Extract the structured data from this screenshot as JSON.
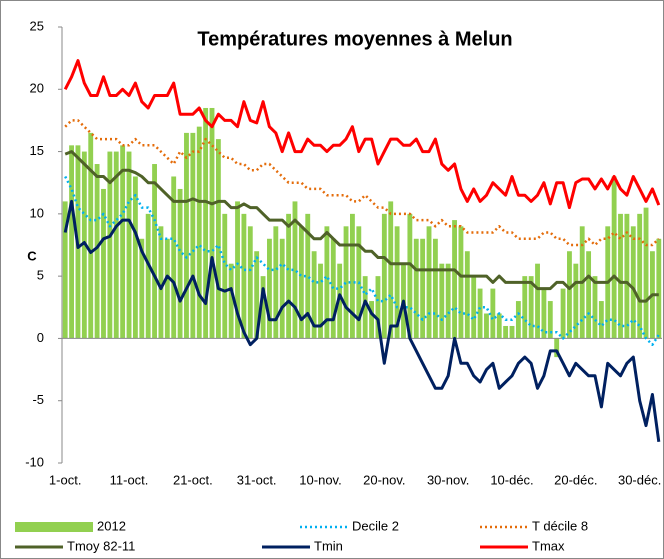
{
  "chart_data": {
    "type": "bar",
    "title": "Températures moyennes à Melun",
    "y_label": "C",
    "categories": [
      "1-oct.",
      null,
      null,
      null,
      null,
      null,
      null,
      null,
      null,
      null,
      "11-oct.",
      null,
      null,
      null,
      null,
      null,
      null,
      null,
      null,
      null,
      "21-oct.",
      null,
      null,
      null,
      null,
      null,
      null,
      null,
      null,
      null,
      "31-oct.",
      null,
      null,
      null,
      null,
      null,
      null,
      null,
      null,
      null,
      "10-nov.",
      null,
      null,
      null,
      null,
      null,
      null,
      null,
      null,
      null,
      "20-nov.",
      null,
      null,
      null,
      null,
      null,
      null,
      null,
      null,
      null,
      "30-nov.",
      null,
      null,
      null,
      null,
      null,
      null,
      null,
      null,
      null,
      "10-déc.",
      null,
      null,
      null,
      null,
      null,
      null,
      null,
      null,
      null,
      "20-déc.",
      null,
      null,
      null,
      null,
      null,
      null,
      null,
      null,
      null,
      "30-déc.",
      null,
      null,
      null
    ],
    "ylim": [
      -10,
      25
    ],
    "yticks": [
      -10,
      -5,
      0,
      5,
      10,
      15,
      20,
      25
    ],
    "series": [
      {
        "name": "2012",
        "type": "bar",
        "color": "#92d050",
        "values": [
          11,
          15.5,
          15.5,
          15,
          16.5,
          14,
          12,
          15,
          15,
          15.5,
          15,
          13,
          8,
          10,
          14,
          9,
          8,
          13,
          12,
          16.5,
          16.5,
          17,
          18.5,
          18.5,
          16,
          10,
          6,
          11,
          10,
          9,
          7,
          5,
          8,
          9,
          8,
          10,
          11,
          9,
          10,
          7,
          6,
          9,
          8,
          6,
          9,
          10,
          9,
          5,
          3,
          5,
          10,
          11,
          9,
          6,
          10,
          8,
          8,
          9,
          8,
          6,
          6,
          9.5,
          9,
          7,
          5,
          4,
          2,
          4,
          2,
          1,
          1,
          3,
          5,
          5,
          6,
          4,
          3,
          -1.5,
          4,
          7,
          6,
          9,
          7,
          5,
          3,
          9,
          13,
          10,
          10,
          9,
          10,
          10.5,
          7,
          8
        ]
      },
      {
        "name": "Decile 2",
        "type": "line",
        "dash": true,
        "color": "#00b0f0",
        "values": [
          13,
          12,
          10.5,
          10,
          9.5,
          9.5,
          10,
          9,
          9.5,
          10,
          11,
          11.5,
          10.5,
          10.5,
          9.5,
          8,
          8,
          8,
          7,
          6.5,
          7,
          7.5,
          7,
          7,
          7.5,
          6,
          5.5,
          6,
          5.5,
          5.5,
          6.5,
          6,
          5.5,
          5.5,
          6,
          5.5,
          5.5,
          5,
          5,
          4.5,
          4.5,
          5,
          4,
          4,
          4.5,
          4.5,
          4.5,
          3.5,
          4,
          3,
          3,
          3.5,
          2.5,
          2.5,
          2.5,
          2,
          1.5,
          2,
          2,
          1.5,
          2,
          2.5,
          2,
          2,
          1.5,
          2.5,
          2.5,
          1.5,
          2,
          1.5,
          1.5,
          2,
          1.5,
          1,
          1,
          0.5,
          0.5,
          0.5,
          0,
          0.5,
          1,
          1.5,
          2,
          1.5,
          1,
          1.5,
          1.5,
          1,
          1,
          1.5,
          1,
          0,
          -0.5,
          0.3
        ]
      },
      {
        "name": "T décile 8",
        "type": "line",
        "dash": true,
        "color": "#e46c0a",
        "values": [
          17,
          17.5,
          17.5,
          17,
          16.5,
          16,
          16,
          16,
          16,
          15.5,
          15.5,
          16,
          15.5,
          15.5,
          15.5,
          15,
          14.5,
          14,
          15,
          14.5,
          15,
          15,
          16,
          15.5,
          15,
          14.5,
          14.5,
          14,
          14,
          13.5,
          13.5,
          14,
          14,
          13.5,
          13,
          12.5,
          12.5,
          12.5,
          12,
          12,
          12,
          11.5,
          11.5,
          11.5,
          11.5,
          11,
          11,
          11.5,
          11,
          10.5,
          10.5,
          10,
          10,
          10,
          10,
          9.5,
          9.5,
          9.5,
          9,
          9.5,
          9,
          9,
          9,
          8.5,
          8.5,
          8.5,
          8.5,
          8.5,
          9,
          8.5,
          8.5,
          8,
          8,
          8,
          8,
          8.5,
          8.5,
          8,
          8,
          7.5,
          7.5,
          7.5,
          8,
          7.5,
          8,
          8,
          8.5,
          8,
          8.5,
          8,
          8,
          7.5,
          7.5,
          8
        ]
      },
      {
        "name": "Tmoy 82-11",
        "type": "line",
        "color": "#4f6228",
        "values": [
          14.8,
          15,
          14.5,
          14,
          13.5,
          13,
          13,
          12.5,
          13,
          13.5,
          13.5,
          13.3,
          13,
          12.5,
          12.5,
          12,
          11.5,
          11,
          11,
          11,
          11.2,
          11,
          11,
          10.8,
          11,
          11,
          10.5,
          10.5,
          10.8,
          10.5,
          10.5,
          10,
          9.5,
          9.5,
          9.5,
          9,
          9.5,
          9,
          8.5,
          8,
          8,
          8.5,
          8,
          7.5,
          7.5,
          7.5,
          7.5,
          7,
          7,
          6.5,
          6.5,
          6,
          6,
          6,
          6,
          5.5,
          5.5,
          5.5,
          5.5,
          5.5,
          5.5,
          5.5,
          5,
          5,
          5,
          5,
          5,
          4.5,
          5,
          4.5,
          4.5,
          4.5,
          4.5,
          4.5,
          4,
          4,
          4,
          4.5,
          4.5,
          4,
          4.5,
          4.5,
          5,
          4.5,
          4.5,
          4.5,
          5,
          4.5,
          4.5,
          4,
          3,
          3,
          3.5,
          3.5
        ]
      },
      {
        "name": "Tmin",
        "type": "line",
        "color": "#002060",
        "values": [
          8.5,
          11,
          7.3,
          7.7,
          6.9,
          7.3,
          8,
          8.2,
          9,
          9.5,
          9.5,
          8.5,
          7,
          6,
          5,
          4,
          5,
          4.5,
          3,
          4,
          5,
          3.5,
          2.8,
          6.5,
          4,
          3.8,
          4,
          2,
          0.5,
          -0.5,
          0,
          4,
          1.5,
          1.5,
          2.5,
          3,
          2.5,
          1.5,
          2,
          1,
          1,
          1.5,
          1.5,
          3.5,
          2.5,
          2,
          1.5,
          3,
          2,
          1.5,
          -2,
          1,
          1,
          3,
          0,
          -1,
          -2,
          -3,
          -4,
          -4,
          -3,
          0,
          -2,
          -2,
          -3,
          -3.5,
          -2.5,
          -2,
          -4,
          -3.5,
          -3,
          -2,
          -1.5,
          -2,
          -4,
          -3,
          -1,
          -1,
          -2,
          -3,
          -2,
          -2.5,
          -3,
          -3,
          -5.5,
          -2,
          -2.5,
          -3,
          -2,
          -1.5,
          -5,
          -7,
          -4.5,
          -8.3
        ]
      },
      {
        "name": "Tmax",
        "type": "line",
        "color": "#ff0000",
        "values": [
          20,
          21,
          22.3,
          20.5,
          19.5,
          19.5,
          21,
          19.5,
          19.5,
          20,
          19.5,
          20.5,
          19,
          18.5,
          19.5,
          19.5,
          19.5,
          20.5,
          18,
          18,
          18,
          18.5,
          17.5,
          17,
          18,
          17.5,
          17.5,
          17,
          19,
          17.5,
          17.3,
          19,
          17,
          16.5,
          15,
          16.5,
          15,
          15,
          16,
          15.5,
          15.5,
          15,
          15.5,
          15.5,
          16,
          17,
          15,
          16,
          16,
          14,
          15,
          16,
          16,
          15.5,
          15.5,
          16,
          15,
          15,
          16,
          14,
          13.5,
          14,
          12,
          11,
          12,
          11,
          11.5,
          12.5,
          12,
          11.5,
          13,
          11.5,
          11.5,
          11,
          11.5,
          12.5,
          10.8,
          12.5,
          12.5,
          10.5,
          12.5,
          12.8,
          12.8,
          12,
          12.8,
          12,
          13,
          12,
          11.5,
          13,
          12,
          11,
          12,
          10.7
        ]
      }
    ]
  }
}
